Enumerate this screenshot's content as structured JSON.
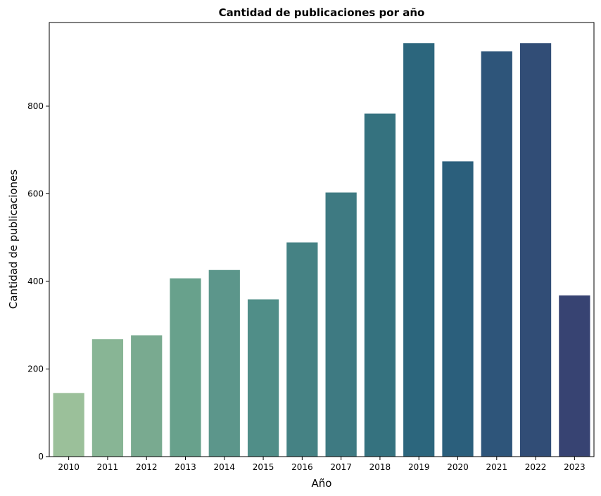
{
  "chart_data": {
    "type": "bar",
    "title": "Cantidad de publicaciones por año",
    "xlabel": "Año",
    "ylabel": "Cantidad de publicaciones",
    "categories": [
      "2010",
      "2011",
      "2012",
      "2013",
      "2014",
      "2015",
      "2016",
      "2017",
      "2018",
      "2019",
      "2020",
      "2021",
      "2022",
      "2023"
    ],
    "values": [
      145,
      268,
      277,
      407,
      426,
      359,
      489,
      603,
      783,
      944,
      674,
      925,
      944,
      368
    ],
    "colors": [
      "#9bc09a",
      "#88b595",
      "#79aa90",
      "#68a18c",
      "#5c968b",
      "#508e88",
      "#458284",
      "#3e7a82",
      "#35727f",
      "#2c667d",
      "#2b5f7c",
      "#2e557a",
      "#314d76",
      "#374372"
    ],
    "yticks": [
      0,
      200,
      400,
      600,
      800
    ],
    "ylim": [
      0,
      991
    ],
    "legend": "none",
    "grid": false
  }
}
